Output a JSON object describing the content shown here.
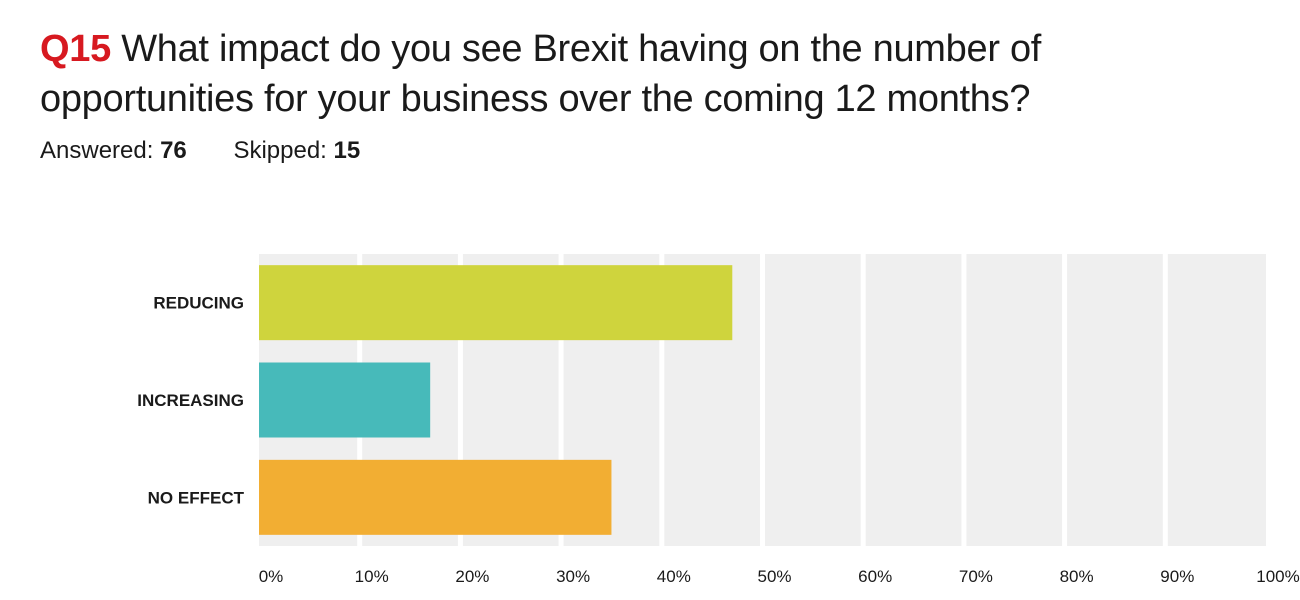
{
  "question": {
    "number": "Q15",
    "text": "What impact do you see Brexit having on the number of opportunities for your business over the coming 12 months?"
  },
  "stats": {
    "answered_label": "Answered:",
    "answered_value": "76",
    "skipped_label": "Skipped:",
    "skipped_value": "15"
  },
  "colors": {
    "accent": "#d71920",
    "plot_background": "#efefef",
    "gridline": "#ffffff"
  },
  "chart_data": {
    "type": "bar",
    "orientation": "horizontal",
    "categories": [
      "REDUCING",
      "INCREASING",
      "NO EFFECT"
    ],
    "values": [
      47,
      17,
      35
    ],
    "value_unit": "%",
    "bar_colors": [
      "#cfd43d",
      "#47baba",
      "#f2ae33"
    ],
    "xlim": [
      0,
      100
    ],
    "xticks": [
      "0%",
      "10%",
      "20%",
      "30%",
      "40%",
      "50%",
      "60%",
      "70%",
      "80%",
      "90%",
      "100%"
    ],
    "grid": true,
    "legend": "none"
  }
}
